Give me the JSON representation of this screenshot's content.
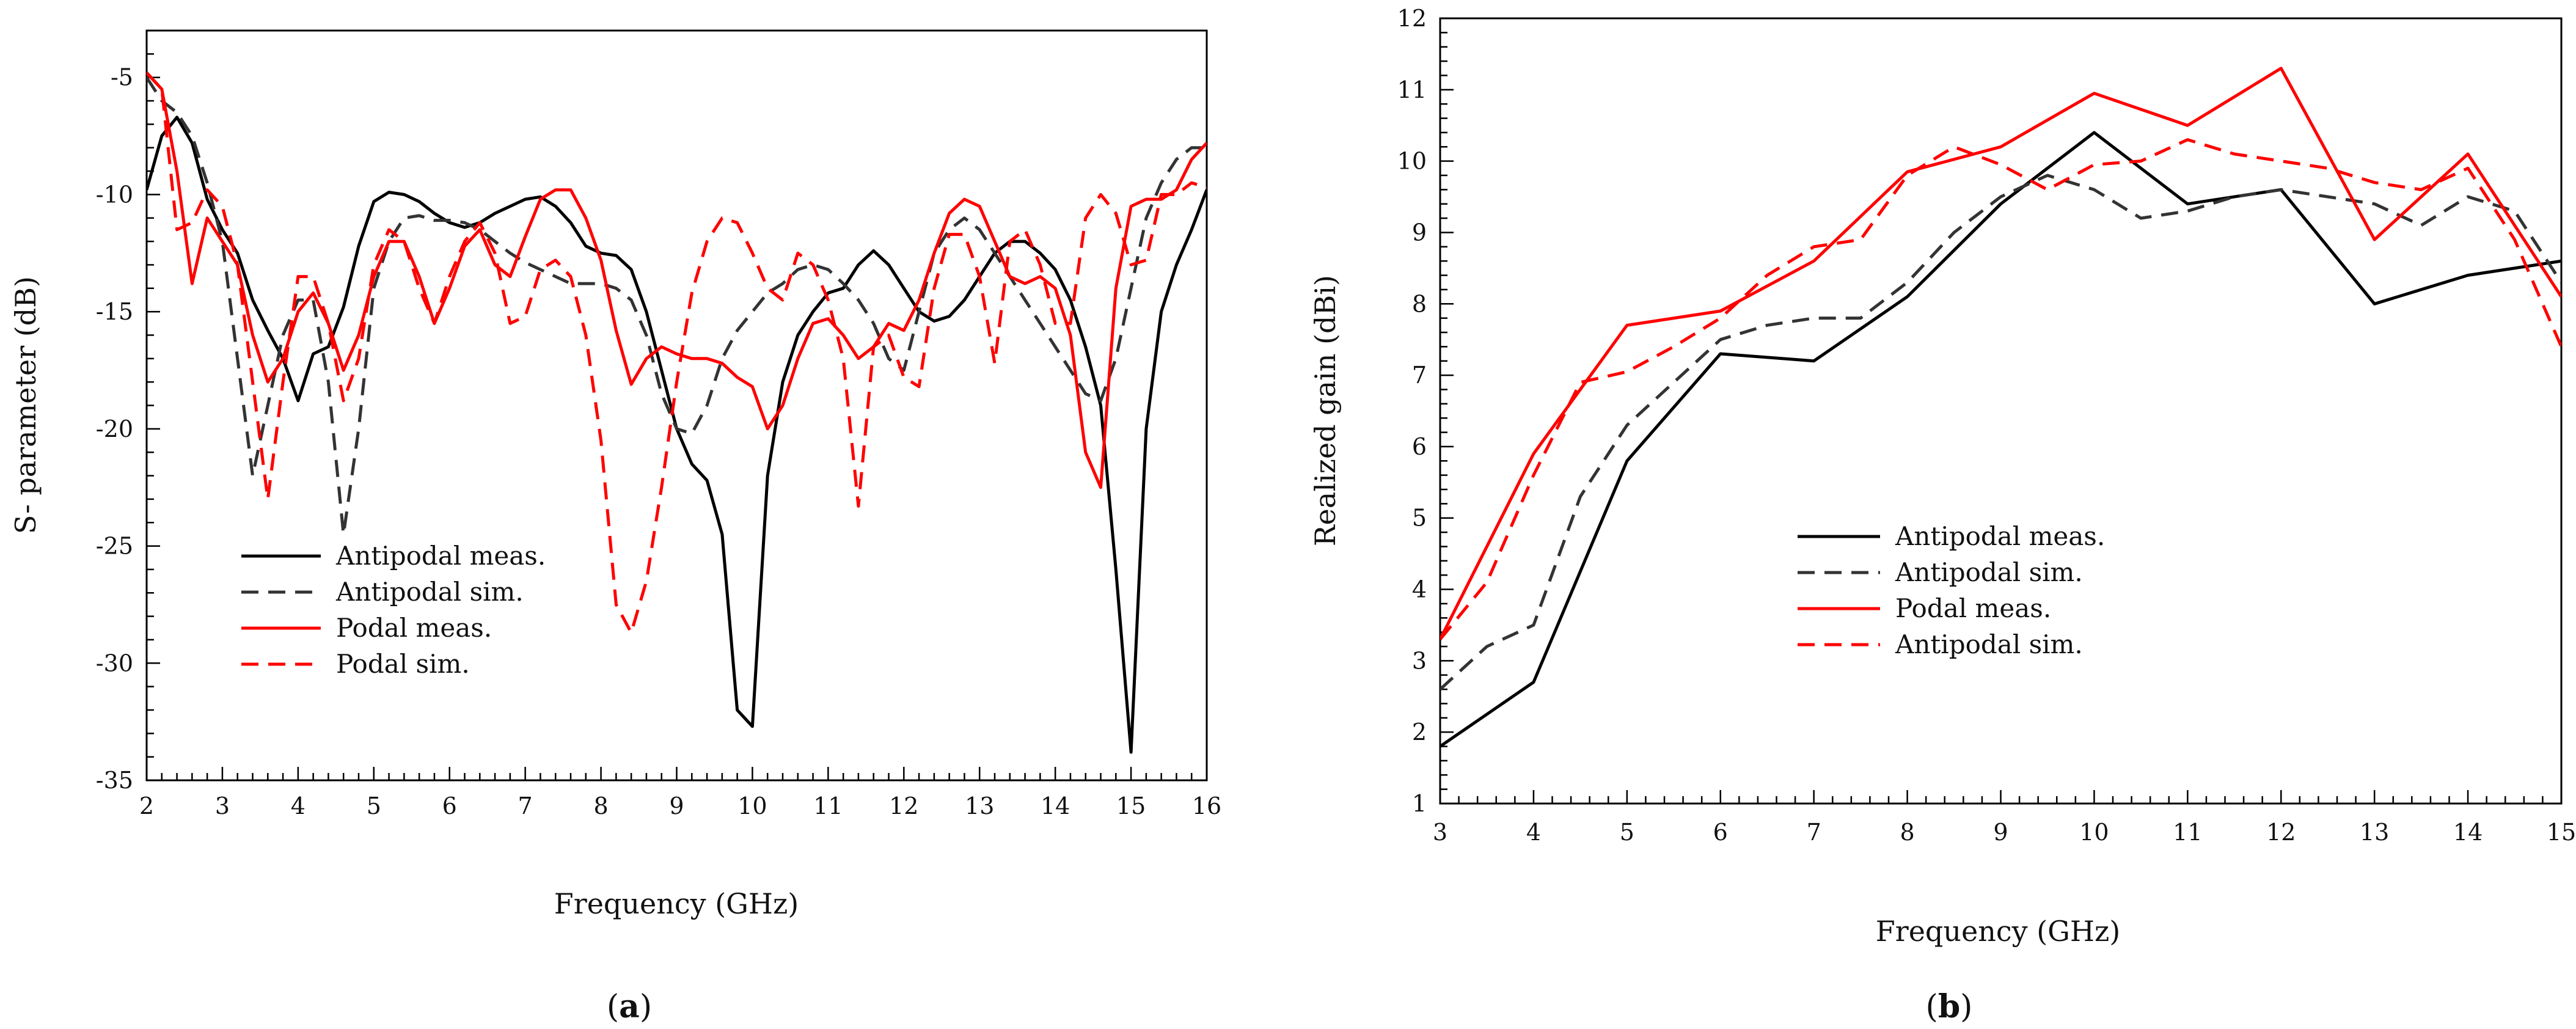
{
  "chart_data": [
    {
      "type": "line",
      "caption": "(a)",
      "caption_letter": "a",
      "xlabel": "Frequency (GHz)",
      "ylabel": "S- parameter (dB)",
      "xlim": [
        2,
        16
      ],
      "ylim": [
        -35,
        -3
      ],
      "xticks": [
        2,
        3,
        4,
        5,
        6,
        7,
        8,
        9,
        10,
        11,
        12,
        13,
        14,
        15,
        16
      ],
      "yticks": [
        -35,
        -30,
        -25,
        -20,
        -15,
        -10,
        -5
      ],
      "legend_position": "lower-left",
      "series": [
        {
          "name": "Antipodal meas.",
          "color": "#000000",
          "dash": "solid",
          "x": [
            2,
            2.2,
            2.4,
            2.6,
            2.8,
            3,
            3.2,
            3.4,
            3.6,
            3.8,
            4,
            4.2,
            4.4,
            4.6,
            4.8,
            5,
            5.2,
            5.4,
            5.6,
            5.8,
            6,
            6.2,
            6.4,
            6.6,
            6.8,
            7,
            7.2,
            7.4,
            7.6,
            7.8,
            8,
            8.2,
            8.4,
            8.6,
            8.8,
            9,
            9.2,
            9.4,
            9.6,
            9.8,
            10,
            10.2,
            10.4,
            10.6,
            10.8,
            11,
            11.2,
            11.4,
            11.6,
            11.8,
            12,
            12.2,
            12.4,
            12.6,
            12.8,
            13,
            13.2,
            13.4,
            13.6,
            13.8,
            14,
            14.2,
            14.4,
            14.6,
            14.8,
            15,
            15.2,
            15.4,
            15.6,
            15.8,
            16
          ],
          "y": [
            -9.8,
            -7.5,
            -6.7,
            -7.8,
            -10.2,
            -11.5,
            -12.5,
            -14.5,
            -15.8,
            -17,
            -18.8,
            -16.8,
            -16.5,
            -14.8,
            -12.2,
            -10.3,
            -9.9,
            -10,
            -10.3,
            -10.8,
            -11.2,
            -11.4,
            -11.2,
            -10.8,
            -10.5,
            -10.2,
            -10.1,
            -10.5,
            -11.2,
            -12.2,
            -12.5,
            -12.6,
            -13.2,
            -15,
            -17.5,
            -20,
            -21.5,
            -22.2,
            -24.5,
            -32,
            -32.7,
            -22,
            -18,
            -16,
            -15,
            -14.2,
            -14,
            -13,
            -12.4,
            -13,
            -14,
            -15,
            -15.4,
            -15.2,
            -14.5,
            -13.5,
            -12.5,
            -12,
            -12,
            -12.5,
            -13.2,
            -14.5,
            -16.5,
            -19,
            -26,
            -33.8,
            -20,
            -15,
            -13,
            -11.5,
            -9.8
          ]
        },
        {
          "name": "Antipodal sim.",
          "color": "#333333",
          "dash": "long",
          "x": [
            2,
            2.2,
            2.4,
            2.6,
            2.8,
            3,
            3.2,
            3.4,
            3.6,
            3.8,
            4,
            4.2,
            4.4,
            4.6,
            4.8,
            5,
            5.2,
            5.4,
            5.6,
            5.8,
            6,
            6.2,
            6.4,
            6.6,
            6.8,
            7,
            7.2,
            7.4,
            7.6,
            7.8,
            8,
            8.2,
            8.4,
            8.6,
            8.8,
            9,
            9.2,
            9.4,
            9.6,
            9.8,
            10,
            10.2,
            10.4,
            10.6,
            10.8,
            11,
            11.2,
            11.4,
            11.6,
            11.8,
            12,
            12.2,
            12.4,
            12.6,
            12.8,
            13,
            13.2,
            13.4,
            13.6,
            13.8,
            14,
            14.2,
            14.4,
            14.6,
            14.8,
            15,
            15.2,
            15.4,
            15.6,
            15.8,
            16
          ],
          "y": [
            -5,
            -6,
            -6.5,
            -7.5,
            -9.5,
            -12,
            -17,
            -22,
            -19,
            -16,
            -14.5,
            -14.5,
            -18,
            -24.5,
            -20,
            -14,
            -12,
            -11,
            -10.9,
            -11.1,
            -11.1,
            -11.2,
            -11.5,
            -12,
            -12.5,
            -12.9,
            -13.2,
            -13.5,
            -13.8,
            -13.8,
            -13.8,
            -14,
            -14.5,
            -16,
            -18.5,
            -20,
            -20.2,
            -19,
            -17,
            -15.8,
            -15,
            -14.2,
            -13.8,
            -13.2,
            -13,
            -13.2,
            -13.8,
            -14.5,
            -15.5,
            -17,
            -17.5,
            -15,
            -12.5,
            -11.5,
            -11,
            -11.5,
            -12.5,
            -13.5,
            -14.5,
            -15.5,
            -16.5,
            -17.5,
            -18.5,
            -18.8,
            -17,
            -14,
            -11,
            -9.5,
            -8.5,
            -8,
            -8
          ]
        },
        {
          "name": "Podal meas.",
          "color": "#ff0000",
          "dash": "solid",
          "x": [
            2,
            2.2,
            2.4,
            2.6,
            2.8,
            3,
            3.2,
            3.4,
            3.6,
            3.8,
            4,
            4.2,
            4.4,
            4.6,
            4.8,
            5,
            5.2,
            5.4,
            5.6,
            5.8,
            6,
            6.2,
            6.4,
            6.6,
            6.8,
            7,
            7.2,
            7.4,
            7.6,
            7.8,
            8,
            8.2,
            8.4,
            8.6,
            8.8,
            9,
            9.2,
            9.4,
            9.6,
            9.8,
            10,
            10.2,
            10.4,
            10.6,
            10.8,
            11,
            11.2,
            11.4,
            11.6,
            11.8,
            12,
            12.2,
            12.4,
            12.6,
            12.8,
            13,
            13.2,
            13.4,
            13.6,
            13.8,
            14,
            14.2,
            14.4,
            14.6,
            14.8,
            15,
            15.2,
            15.4,
            15.6,
            15.8,
            16
          ],
          "y": [
            -4.8,
            -5.5,
            -9,
            -13.8,
            -11,
            -12,
            -13,
            -16,
            -18,
            -17,
            -15,
            -14.2,
            -15.5,
            -17.5,
            -16,
            -13.5,
            -12,
            -12,
            -13.5,
            -15.5,
            -14,
            -12.2,
            -11.5,
            -13,
            -13.5,
            -11.8,
            -10.2,
            -9.8,
            -9.8,
            -11,
            -12.8,
            -15.8,
            -18.1,
            -17,
            -16.5,
            -16.8,
            -17,
            -17,
            -17.2,
            -17.8,
            -18.2,
            -20,
            -19,
            -17,
            -15.5,
            -15.3,
            -16,
            -17,
            -16.5,
            -15.5,
            -15.8,
            -14.5,
            -12.5,
            -10.8,
            -10.2,
            -10.5,
            -12,
            -13.5,
            -13.8,
            -13.5,
            -14,
            -16,
            -21,
            -22.5,
            -14,
            -10.5,
            -10.2,
            -10.2,
            -9.8,
            -8.5,
            -7.8
          ]
        },
        {
          "name": "Podal sim.",
          "color": "#ff0000",
          "dash": "long",
          "x": [
            2,
            2.2,
            2.4,
            2.6,
            2.8,
            3,
            3.2,
            3.4,
            3.6,
            3.8,
            4,
            4.2,
            4.4,
            4.6,
            4.8,
            5,
            5.2,
            5.4,
            5.6,
            5.8,
            6,
            6.2,
            6.4,
            6.6,
            6.8,
            7,
            7.2,
            7.4,
            7.6,
            7.8,
            8,
            8.2,
            8.4,
            8.6,
            8.8,
            9,
            9.2,
            9.4,
            9.6,
            9.8,
            10,
            10.2,
            10.4,
            10.6,
            10.8,
            11,
            11.2,
            11.4,
            11.6,
            11.8,
            12,
            12.2,
            12.4,
            12.6,
            12.8,
            13,
            13.2,
            13.4,
            13.6,
            13.8,
            14,
            14.2,
            14.4,
            14.6,
            14.8,
            15,
            15.2,
            15.4,
            15.6,
            15.8,
            16
          ],
          "y": [
            -4.8,
            -5.5,
            -11.5,
            -11.2,
            -9.8,
            -10.5,
            -13,
            -18,
            -23,
            -18,
            -13.5,
            -13.5,
            -15.5,
            -18.8,
            -17,
            -13,
            -11.5,
            -12,
            -14,
            -15.5,
            -13.5,
            -12,
            -11.2,
            -12.5,
            -15.5,
            -15.2,
            -13.2,
            -12.8,
            -13.5,
            -16,
            -20.5,
            -27.5,
            -28.7,
            -26.5,
            -22.5,
            -18,
            -14.2,
            -12,
            -11,
            -11.2,
            -12.5,
            -14,
            -14.5,
            -12.5,
            -13,
            -14.5,
            -17,
            -23.3,
            -16.5,
            -16,
            -17.8,
            -18.2,
            -14,
            -11.7,
            -11.7,
            -13.5,
            -17.2,
            -12,
            -11.5,
            -13,
            -15.5,
            -15.5,
            -11,
            -10,
            -10.8,
            -13,
            -12.8,
            -10,
            -10,
            -9.5,
            -9.7
          ]
        }
      ]
    },
    {
      "type": "line",
      "caption": "(b)",
      "caption_letter": "b",
      "xlabel": "Frequency (GHz)",
      "ylabel": "Realized gain (dBi)",
      "xlim": [
        3,
        15
      ],
      "ylim": [
        1,
        12
      ],
      "xticks": [
        3,
        4,
        5,
        6,
        7,
        8,
        9,
        10,
        11,
        12,
        13,
        14,
        15
      ],
      "yticks": [
        1,
        2,
        3,
        4,
        5,
        6,
        7,
        8,
        9,
        10,
        11,
        12
      ],
      "legend_position": "lower-center",
      "series": [
        {
          "name": "Antipodal meas.",
          "color": "#000000",
          "dash": "solid",
          "x": [
            3,
            4,
            5,
            6,
            7,
            8,
            9,
            10,
            11,
            12,
            13,
            14,
            15
          ],
          "y": [
            1.8,
            2.7,
            5.8,
            7.3,
            7.2,
            8.1,
            9.4,
            10.4,
            9.4,
            9.6,
            8,
            8.4,
            8.6
          ]
        },
        {
          "name": "Antipodal sim.",
          "color": "#333333",
          "dash": "long",
          "x": [
            3,
            3.5,
            4,
            4.5,
            5,
            5.5,
            6,
            6.5,
            7,
            7.5,
            8,
            8.5,
            9,
            9.5,
            10,
            10.5,
            11,
            11.5,
            12,
            12.5,
            13,
            13.5,
            14,
            14.5,
            15
          ],
          "y": [
            2.6,
            3.2,
            3.5,
            5.3,
            6.3,
            6.9,
            7.5,
            7.7,
            7.8,
            7.8,
            8.3,
            9,
            9.5,
            9.8,
            9.6,
            9.2,
            9.3,
            9.5,
            9.6,
            9.5,
            9.4,
            9.1,
            9.5,
            9.3,
            8.3
          ]
        },
        {
          "name": "Podal meas.",
          "color": "#ff0000",
          "dash": "solid",
          "x": [
            3,
            4,
            5,
            6,
            7,
            8,
            9,
            10,
            11,
            12,
            13,
            14,
            15
          ],
          "y": [
            3.3,
            5.9,
            7.7,
            7.9,
            8.6,
            9.85,
            10.2,
            10.95,
            10.5,
            11.3,
            8.9,
            10.1,
            8.1
          ]
        },
        {
          "name": "Antipodal sim.",
          "color": "#ff0000",
          "dash": "long",
          "x": [
            3,
            3.5,
            4,
            4.5,
            5,
            5.5,
            6,
            6.5,
            7,
            7.5,
            8,
            8.5,
            9,
            9.5,
            10,
            10.5,
            11,
            11.5,
            12,
            12.5,
            13,
            13.5,
            14,
            14.5,
            15
          ],
          "y": [
            3.3,
            4.1,
            5.6,
            6.9,
            7.05,
            7.4,
            7.8,
            8.4,
            8.8,
            8.9,
            9.8,
            10.2,
            9.95,
            9.6,
            9.95,
            10,
            10.3,
            10.1,
            10,
            9.9,
            9.7,
            9.6,
            9.9,
            8.9,
            7.4
          ]
        }
      ]
    }
  ]
}
